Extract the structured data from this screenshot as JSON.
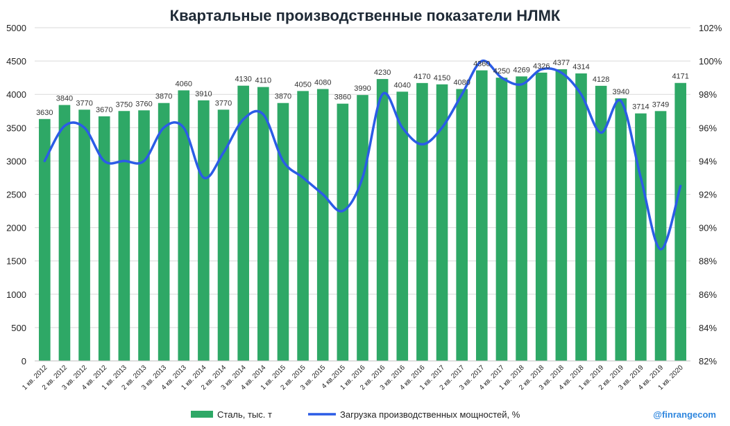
{
  "chart_data": {
    "type": "bar",
    "title": "Квартальные производственные показатели НЛМК",
    "categories": [
      "1 кв. 2012",
      "2 кв. 2012",
      "3 кв. 2012",
      "4 кв. 2012",
      "1 кв. 2013",
      "2 кв. 2013",
      "3 кв. 2013",
      "4 кв. 2013",
      "1 кв. 2014",
      "2 кв. 2014",
      "3 кв. 2014",
      "4 кв. 2014",
      "1 кв. 2015",
      "2 кв. 2015",
      "3 кв. 2015",
      "4 кв.2015",
      "1 кв. 2016",
      "2 кв. 2016",
      "3 кв. 2016",
      "4 кв. 2016",
      "1 кв. 2017",
      "2 кв. 2017",
      "3 кв. 2017",
      "4 кв. 2017",
      "1 кв. 2018",
      "2 кв. 2018",
      "3 кв. 2018",
      "4 кв. 2018",
      "1 кв. 2019",
      "2 кв. 2019",
      "3 кв. 2019",
      "4 кв. 2019",
      "1 кв. 2020"
    ],
    "series": [
      {
        "name": "Сталь, тыс. т",
        "type": "bar",
        "axis": "left",
        "color": "#2ea866",
        "values": [
          3630,
          3840,
          3770,
          3670,
          3750,
          3760,
          3870,
          4060,
          3910,
          3770,
          4130,
          4110,
          3870,
          4050,
          4080,
          3860,
          3990,
          4230,
          4040,
          4170,
          4150,
          4080,
          4360,
          4250,
          4269,
          4326,
          4377,
          4314,
          4128,
          3940,
          3714,
          3749,
          4171
        ],
        "labels": [
          "3630",
          "3840",
          "3770",
          "3670",
          "3750",
          "3760",
          "3870",
          "4060",
          "3910",
          "3770",
          "4130",
          "4110",
          "3870",
          "4050",
          "4080",
          "3860",
          "3990",
          "4230",
          "4040",
          "4170",
          "4150",
          "4080",
          "4360",
          "4250",
          "4269",
          "4326",
          "4377",
          "4314",
          "4128",
          "3940",
          "3714",
          "3749",
          "4171"
        ]
      },
      {
        "name": "Загрузка производственных мощностей, %",
        "type": "line",
        "axis": "right",
        "color": "#2b5ce6",
        "values": [
          94.0,
          96.1,
          96.0,
          94.0,
          94.0,
          94.0,
          96.0,
          96.0,
          93.0,
          94.5,
          96.5,
          96.8,
          94.0,
          93.0,
          92.0,
          91.0,
          93.0,
          98.0,
          96.0,
          95.0,
          96.0,
          98.0,
          100.0,
          99.0,
          98.6,
          99.5,
          99.3,
          98.0,
          95.7,
          97.6,
          93.0,
          88.7,
          92.5
        ]
      }
    ],
    "y_left": {
      "min": 0,
      "max": 5000,
      "ticks": [
        "0",
        "500",
        "1000",
        "1500",
        "2000",
        "2500",
        "3000",
        "3500",
        "4000",
        "4500",
        "5000"
      ]
    },
    "y_right": {
      "min": 82,
      "max": 102,
      "ticks": [
        "82%",
        "84%",
        "86%",
        "88%",
        "90%",
        "92%",
        "94%",
        "96%",
        "98%",
        "100%",
        "102%"
      ]
    },
    "grid": true,
    "legend_position": "bottom"
  },
  "watermark": "@finrangecom"
}
